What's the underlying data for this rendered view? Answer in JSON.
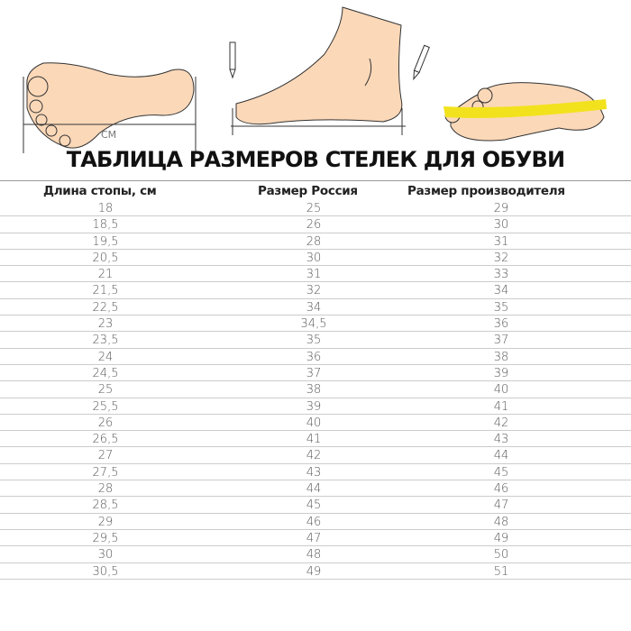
{
  "illustration": {
    "measure_label": "СМ",
    "skin_color": "#fbd8b8",
    "tape_color": "#f2e21d"
  },
  "title": "ТАБЛИЦА РАЗМЕРОВ СТЕЛЕК ДЛЯ ОБУВИ",
  "table": {
    "headers": [
      "Длина стопы, см",
      "Размер Россия",
      "Размер производителя"
    ],
    "rows": [
      [
        "18",
        "25",
        "29"
      ],
      [
        "18,5",
        "26",
        "30"
      ],
      [
        "19,5",
        "28",
        "31"
      ],
      [
        "20,5",
        "30",
        "32"
      ],
      [
        "21",
        "31",
        "33"
      ],
      [
        "21,5",
        "32",
        "34"
      ],
      [
        "22,5",
        "34",
        "35"
      ],
      [
        "23",
        "34,5",
        "36"
      ],
      [
        "23,5",
        "35",
        "37"
      ],
      [
        "24",
        "36",
        "38"
      ],
      [
        "24,5",
        "37",
        "39"
      ],
      [
        "25",
        "38",
        "40"
      ],
      [
        "25,5",
        "39",
        "41"
      ],
      [
        "26",
        "40",
        "42"
      ],
      [
        "26,5",
        "41",
        "43"
      ],
      [
        "27",
        "42",
        "44"
      ],
      [
        "27,5",
        "43",
        "45"
      ],
      [
        "28",
        "44",
        "46"
      ],
      [
        "28,5",
        "45",
        "47"
      ],
      [
        "29",
        "46",
        "48"
      ],
      [
        "29,5",
        "47",
        "49"
      ],
      [
        "30",
        "48",
        "50"
      ],
      [
        "30,5",
        "49",
        "51"
      ]
    ]
  }
}
